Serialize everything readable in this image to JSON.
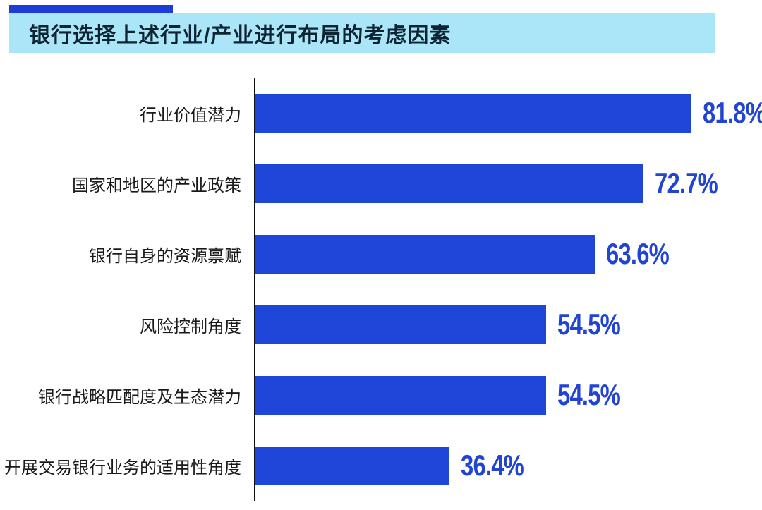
{
  "header": {
    "title": "银行选择上述行业/产业进行布局的考虑因素"
  },
  "chart_data": {
    "type": "bar",
    "orientation": "horizontal",
    "title": "银行选择上述行业/产业进行布局的考虑因素",
    "categories": [
      "行业价值潜力",
      "国家和地区的产业政策",
      "银行自身的资源禀赋",
      "风险控制角度",
      "银行战略匹配度及生态潜力",
      "开展交易银行业务的适用性角度"
    ],
    "values": [
      81.8,
      72.7,
      63.6,
      54.5,
      54.5,
      36.4
    ],
    "value_labels": [
      "81.8%",
      "72.7%",
      "63.6%",
      "54.5%",
      "54.5%",
      "36.4%"
    ],
    "xlabel": "",
    "ylabel": "",
    "xlim": [
      0,
      100
    ],
    "grid": false,
    "legend": "none",
    "colors": {
      "bar": "#1e46d9",
      "value_label": "#2144d2",
      "header_background": "#aae6f8",
      "header_text": "#0e2433",
      "accent": "#1c3dd6",
      "axis": "#111111",
      "category_text": "#1a1a1a"
    }
  }
}
